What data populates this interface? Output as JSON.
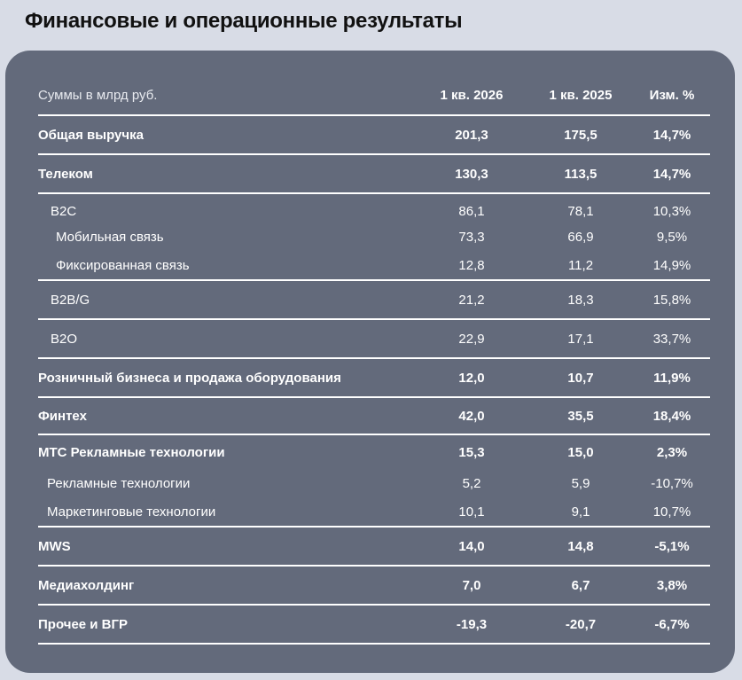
{
  "page_title": "Финансовые и операционные результаты",
  "table": {
    "header": {
      "label": "Суммы в млрд руб.",
      "col1": "1 кв. 2026",
      "col2": "1 кв. 2025",
      "col3": "Изм. %"
    },
    "rows": [
      {
        "label": "Общая выручка",
        "v1": "201,3",
        "v2": "175,5",
        "v3": "14,7%"
      },
      {
        "label": "Телеком",
        "v1": "130,3",
        "v2": "113,5",
        "v3": "14,7%"
      },
      {
        "label": "B2C",
        "v1": "86,1",
        "v2": "78,1",
        "v3": "10,3%"
      },
      {
        "label": "Мобильная связь",
        "v1": "73,3",
        "v2": "66,9",
        "v3": "9,5%"
      },
      {
        "label": "Фиксированная связь",
        "v1": "12,8",
        "v2": "11,2",
        "v3": "14,9%"
      },
      {
        "label": "B2B/G",
        "v1": "21,2",
        "v2": "18,3",
        "v3": "15,8%"
      },
      {
        "label": "B2O",
        "v1": "22,9",
        "v2": "17,1",
        "v3": "33,7%"
      },
      {
        "label": "Розничный бизнеса и продажа оборудования",
        "v1": "12,0",
        "v2": "10,7",
        "v3": "11,9%"
      },
      {
        "label": "Финтех",
        "v1": "42,0",
        "v2": "35,5",
        "v3": "18,4%"
      },
      {
        "label": "МТС Рекламные технологии",
        "v1": "15,3",
        "v2": "15,0",
        "v3": "2,3%"
      },
      {
        "label": "Рекламные технологии",
        "v1": "5,2",
        "v2": "5,9",
        "v3": "-10,7%"
      },
      {
        "label": "Маркетинговые технологии",
        "v1": "10,1",
        "v2": "9,1",
        "v3": "10,7%"
      },
      {
        "label": "MWS",
        "v1": "14,0",
        "v2": "14,8",
        "v3": "-5,1%"
      },
      {
        "label": "Медиахолдинг",
        "v1": "7,0",
        "v2": "6,7",
        "v3": "3,8%"
      },
      {
        "label": "Прочее и ВГР",
        "v1": "-19,3",
        "v2": "-20,7",
        "v3": "-6,7%"
      }
    ]
  }
}
